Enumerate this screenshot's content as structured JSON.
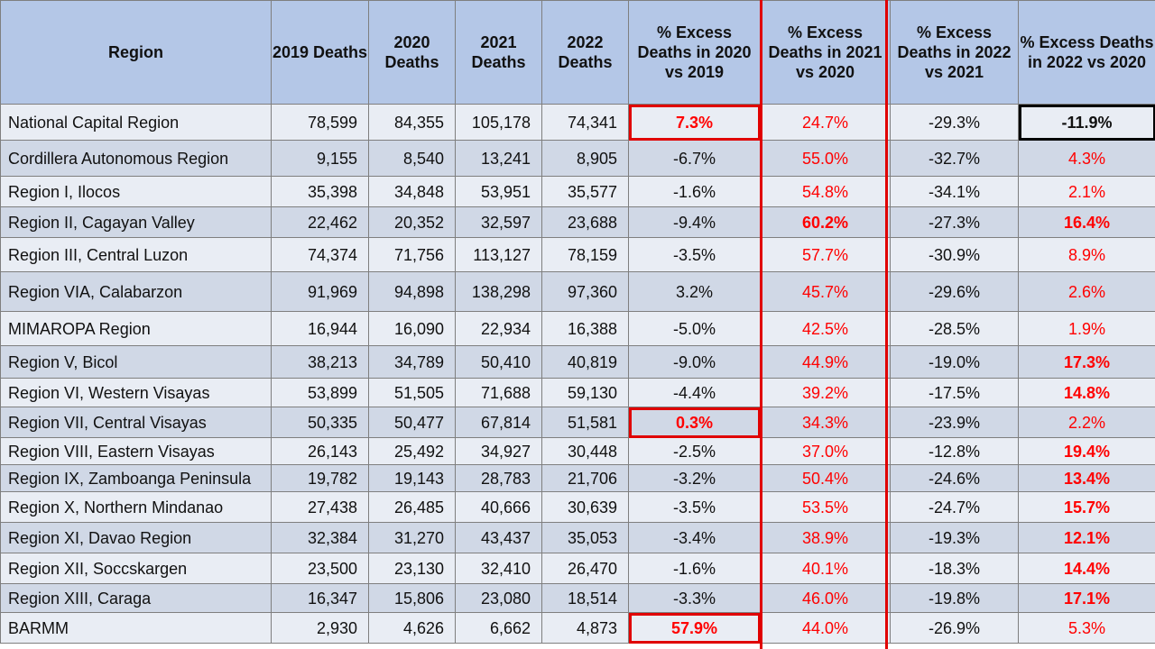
{
  "colors": {
    "header_bg": "#b4c7e7",
    "row_light": "#e9edf4",
    "row_dark": "#d0d8e6",
    "highlight_red": "#ff0000",
    "box_red": "#e00000"
  },
  "headers": [
    "Region",
    "2019 Deaths",
    "2020 Deaths",
    "2021 Deaths",
    "2022 Deaths",
    "% Excess Deaths in 2020 vs 2019",
    "% Excess Deaths in 2021 vs 2020",
    "% Excess Deaths in 2022 vs 2021",
    "% Excess Deaths in 2022 vs 2020"
  ],
  "rows": [
    [
      "National Capital Region",
      "78,599",
      "84,355",
      "105,178",
      "74,341",
      "7.3%",
      "24.7%",
      "-29.3%",
      "-11.9%"
    ],
    [
      "Cordillera Autonomous Region",
      "9,155",
      "8,540",
      "13,241",
      "8,905",
      "-6.7%",
      "55.0%",
      "-32.7%",
      "4.3%"
    ],
    [
      "Region I, Ilocos",
      "35,398",
      "34,848",
      "53,951",
      "35,577",
      "-1.6%",
      "54.8%",
      "-34.1%",
      "2.1%"
    ],
    [
      "Region II, Cagayan Valley",
      "22,462",
      "20,352",
      "32,597",
      "23,688",
      "-9.4%",
      "60.2%",
      "-27.3%",
      "16.4%"
    ],
    [
      "Region III, Central Luzon",
      "74,374",
      "71,756",
      "113,127",
      "78,159",
      "-3.5%",
      "57.7%",
      "-30.9%",
      "8.9%"
    ],
    [
      "Region VIA, Calabarzon",
      "91,969",
      "94,898",
      "138,298",
      "97,360",
      "3.2%",
      "45.7%",
      "-29.6%",
      "2.6%"
    ],
    [
      "MIMAROPA Region",
      "16,944",
      "16,090",
      "22,934",
      "16,388",
      "-5.0%",
      "42.5%",
      "-28.5%",
      "1.9%"
    ],
    [
      "Region V, Bicol",
      "38,213",
      "34,789",
      "50,410",
      "40,819",
      "-9.0%",
      "44.9%",
      "-19.0%",
      "17.3%"
    ],
    [
      "Region VI, Western Visayas",
      "53,899",
      "51,505",
      "71,688",
      "59,130",
      "-4.4%",
      "39.2%",
      "-17.5%",
      "14.8%"
    ],
    [
      "Region VII, Central Visayas",
      "50,335",
      "50,477",
      "67,814",
      "51,581",
      "0.3%",
      "34.3%",
      "-23.9%",
      "2.2%"
    ],
    [
      "Region VIII, Eastern Visayas",
      "26,143",
      "25,492",
      "34,927",
      "30,448",
      "-2.5%",
      "37.0%",
      "-12.8%",
      "19.4%"
    ],
    [
      "Region IX, Zamboanga Peninsula",
      "19,782",
      "19,143",
      "28,783",
      "21,706",
      "-3.2%",
      "50.4%",
      "-24.6%",
      "13.4%"
    ],
    [
      "Region X, Northern Mindanao",
      "27,438",
      "26,485",
      "40,666",
      "30,639",
      "-3.5%",
      "53.5%",
      "-24.7%",
      "15.7%"
    ],
    [
      "Region XI, Davao Region",
      "32,384",
      "31,270",
      "43,437",
      "35,053",
      "-3.4%",
      "38.9%",
      "-19.3%",
      "12.1%"
    ],
    [
      "Region XII, Soccskargen",
      "23,500",
      "23,130",
      "32,410",
      "26,470",
      "-1.6%",
      "40.1%",
      "-18.3%",
      "14.4%"
    ],
    [
      "Region XIII, Caraga",
      "16,347",
      "15,806",
      "23,080",
      "18,514",
      "-3.3%",
      "46.0%",
      "-19.8%",
      "17.1%"
    ],
    [
      "BARMM",
      "2,930",
      "4,626",
      "6,662",
      "4,873",
      "57.9%",
      "44.0%",
      "-26.9%",
      "5.3%"
    ]
  ],
  "chart_data": {
    "type": "table",
    "columns": [
      "Region",
      "2019 Deaths",
      "2020 Deaths",
      "2021 Deaths",
      "2022 Deaths",
      "% Excess Deaths in 2020 vs 2019",
      "% Excess Deaths in 2021 vs 2020",
      "% Excess Deaths in 2022 vs 2021",
      "% Excess Deaths in 2022 vs 2020"
    ],
    "categories": [
      "National Capital Region",
      "Cordillera Autonomous Region",
      "Region I, Ilocos",
      "Region II, Cagayan Valley",
      "Region III, Central Luzon",
      "Region VIA, Calabarzon",
      "MIMAROPA Region",
      "Region V, Bicol",
      "Region VI, Western Visayas",
      "Region VII, Central Visayas",
      "Region VIII, Eastern Visayas",
      "Region IX, Zamboanga Peninsula",
      "Region X, Northern Mindanao",
      "Region XI, Davao Region",
      "Region XII, Soccskargen",
      "Region XIII, Caraga",
      "BARMM"
    ],
    "series": [
      {
        "name": "2019 Deaths",
        "values": [
          78599,
          9155,
          35398,
          22462,
          74374,
          91969,
          16944,
          38213,
          53899,
          50335,
          26143,
          19782,
          27438,
          32384,
          23500,
          16347,
          2930
        ]
      },
      {
        "name": "2020 Deaths",
        "values": [
          84355,
          8540,
          34848,
          20352,
          71756,
          94898,
          16090,
          34789,
          51505,
          50477,
          25492,
          19143,
          26485,
          31270,
          23130,
          15806,
          4626
        ]
      },
      {
        "name": "2021 Deaths",
        "values": [
          105178,
          13241,
          53951,
          32597,
          113127,
          138298,
          22934,
          50410,
          71688,
          67814,
          34927,
          28783,
          40666,
          43437,
          32410,
          23080,
          6662
        ]
      },
      {
        "name": "2022 Deaths",
        "values": [
          74341,
          8905,
          35577,
          23688,
          78159,
          97360,
          16388,
          40819,
          59130,
          51581,
          30448,
          21706,
          30639,
          35053,
          26470,
          18514,
          4873
        ]
      },
      {
        "name": "% Excess Deaths in 2020 vs 2019",
        "values": [
          7.3,
          -6.7,
          -1.6,
          -9.4,
          -3.5,
          3.2,
          -5.0,
          -9.0,
          -4.4,
          0.3,
          -2.5,
          -3.2,
          -3.5,
          -3.4,
          -1.6,
          -3.3,
          57.9
        ]
      },
      {
        "name": "% Excess Deaths in 2021 vs 2020",
        "values": [
          24.7,
          55.0,
          54.8,
          60.2,
          57.7,
          45.7,
          42.5,
          44.9,
          39.2,
          34.3,
          37.0,
          50.4,
          53.5,
          38.9,
          40.1,
          46.0,
          44.0
        ]
      },
      {
        "name": "% Excess Deaths in 2022 vs 2021",
        "values": [
          -29.3,
          -32.7,
          -34.1,
          -27.3,
          -30.9,
          -29.6,
          -28.5,
          -19.0,
          -17.5,
          -23.9,
          -12.8,
          -24.6,
          -24.7,
          -19.3,
          -18.3,
          -19.8,
          -26.9
        ]
      },
      {
        "name": "% Excess Deaths in 2022 vs 2020",
        "values": [
          -11.9,
          4.3,
          2.1,
          16.4,
          8.9,
          2.6,
          1.9,
          17.3,
          14.8,
          2.2,
          19.4,
          13.4,
          15.7,
          12.1,
          14.4,
          17.1,
          5.3
        ]
      }
    ],
    "highlights": {
      "boxed_red_cells": [
        "National Capital Region: 7.3%",
        "Region VII, Central Visayas: 0.3%",
        "BARMM: 57.9%"
      ],
      "boxed_red_column": "% Excess Deaths in 2021 vs 2020",
      "boxed_black_cell": "National Capital Region: -11.9%"
    }
  }
}
